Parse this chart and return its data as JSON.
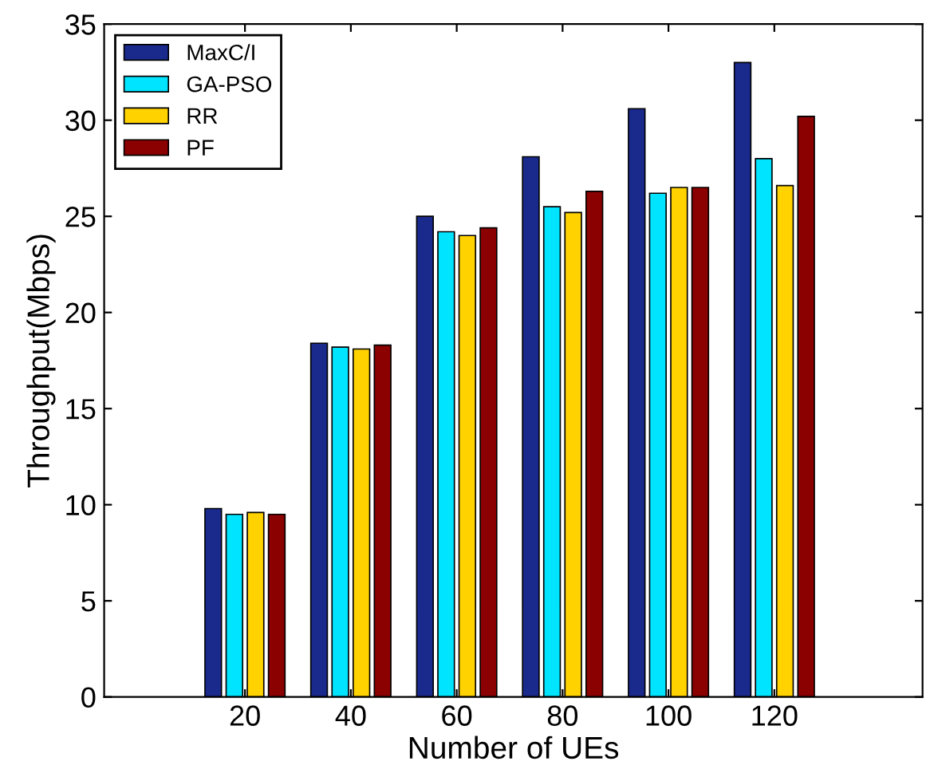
{
  "chart_data": {
    "type": "bar",
    "xlabel": "Number of UEs",
    "ylabel": "Throughput(Mbps)",
    "categories": [
      "20",
      "40",
      "60",
      "80",
      "100",
      "120"
    ],
    "series": [
      {
        "name": "MaxC/I",
        "color": "#1a2a8c",
        "values": [
          9.8,
          18.4,
          25.0,
          28.1,
          30.6,
          33.0
        ]
      },
      {
        "name": "GA-PSO",
        "color": "#00e4ff",
        "values": [
          9.5,
          18.2,
          24.2,
          25.5,
          26.2,
          28.0
        ]
      },
      {
        "name": "RR",
        "color": "#ffd200",
        "values": [
          9.6,
          18.1,
          24.0,
          25.2,
          26.5,
          26.6
        ]
      },
      {
        "name": "PF",
        "color": "#8b0000",
        "values": [
          9.5,
          18.3,
          24.4,
          26.3,
          26.5,
          30.2
        ]
      }
    ],
    "ylim": [
      0,
      35
    ],
    "yticks": [
      0,
      5,
      10,
      15,
      20,
      25,
      30,
      35
    ],
    "grid": false,
    "legend": "top left"
  }
}
